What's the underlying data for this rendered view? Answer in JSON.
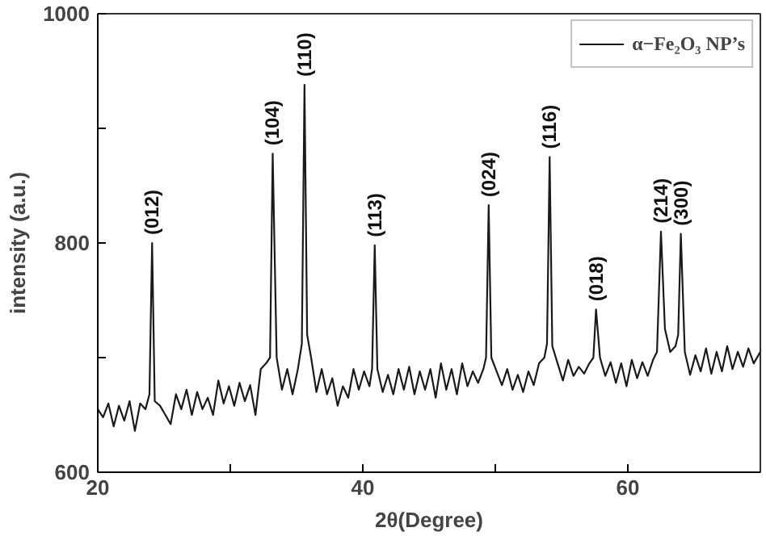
{
  "chart_data": {
    "type": "line",
    "xlabel": "2θ(Degree)",
    "ylabel": "intensity (a.u.)",
    "xlim": [
      20,
      70
    ],
    "ylim": [
      600,
      1000
    ],
    "xticks": [
      20,
      {
        "value": 30,
        "label": null
      },
      40,
      {
        "value": 50,
        "label": null
      },
      60
    ],
    "yticks": [
      600,
      {
        "value": 700,
        "label": null
      },
      800,
      {
        "value": 900,
        "label": null
      },
      1000
    ],
    "grid": false,
    "legend": "top right",
    "marker": "none",
    "line_style": "solid",
    "annotations": [
      {
        "text": "(012)",
        "x": 24.1,
        "y": 800
      },
      {
        "text": "(104)",
        "x": 33.2,
        "y": 878
      },
      {
        "text": "(110)",
        "x": 35.6,
        "y": 938
      },
      {
        "text": "(113)",
        "x": 40.9,
        "y": 798
      },
      {
        "text": "(024)",
        "x": 49.5,
        "y": 833
      },
      {
        "text": "(116)",
        "x": 54.1,
        "y": 875
      },
      {
        "text": "(018)",
        "x": 57.6,
        "y": 742
      },
      {
        "text": "(214)",
        "x": 62.5,
        "y": 810
      },
      {
        "text": "(300)",
        "x": 64.0,
        "y": 808
      }
    ],
    "series": [
      {
        "name": "α−Fe₂O₃ NP’s",
        "color": "#1a1a1a",
        "x": [
          20,
          20.4,
          20.8,
          21.2,
          21.6,
          22,
          22.4,
          22.8,
          23.2,
          23.6,
          23.9,
          24.1,
          24.3,
          24.7,
          25.1,
          25.5,
          25.9,
          26.3,
          26.7,
          27.1,
          27.5,
          27.9,
          28.3,
          28.7,
          29.1,
          29.5,
          29.9,
          30.3,
          30.7,
          31.1,
          31.5,
          31.9,
          32.3,
          32.7,
          33.0,
          33.2,
          33.5,
          33.9,
          34.3,
          34.7,
          35.1,
          35.4,
          35.6,
          35.8,
          36.1,
          36.5,
          36.9,
          37.3,
          37.7,
          38.1,
          38.5,
          38.9,
          39.3,
          39.7,
          40.1,
          40.5,
          40.7,
          40.9,
          41.1,
          41.5,
          41.9,
          42.3,
          42.7,
          43.1,
          43.5,
          43.9,
          44.3,
          44.7,
          45.1,
          45.5,
          45.9,
          46.3,
          46.7,
          47.1,
          47.5,
          47.9,
          48.3,
          48.7,
          49.1,
          49.3,
          49.5,
          49.7,
          50.1,
          50.5,
          50.9,
          51.3,
          51.7,
          52.1,
          52.5,
          52.9,
          53.3,
          53.7,
          53.9,
          54.1,
          54.3,
          54.7,
          55.1,
          55.5,
          55.9,
          56.3,
          56.7,
          57.1,
          57.4,
          57.6,
          57.9,
          58.3,
          58.7,
          59.1,
          59.5,
          59.9,
          60.3,
          60.7,
          61.1,
          61.5,
          61.9,
          62.2,
          62.5,
          62.8,
          63.2,
          63.6,
          63.8,
          64.0,
          64.3,
          64.7,
          65.1,
          65.5,
          65.9,
          66.3,
          66.7,
          67.1,
          67.5,
          67.9,
          68.3,
          68.7,
          69.1,
          69.5,
          70
        ],
        "values": [
          655,
          648,
          660,
          640,
          658,
          645,
          662,
          636,
          660,
          655,
          668,
          800,
          662,
          658,
          650,
          642,
          668,
          655,
          672,
          650,
          670,
          655,
          665,
          650,
          680,
          660,
          675,
          658,
          678,
          662,
          676,
          650,
          690,
          695,
          700,
          878,
          700,
          672,
          690,
          668,
          690,
          712,
          938,
          720,
          700,
          670,
          690,
          668,
          682,
          658,
          675,
          665,
          690,
          672,
          688,
          675,
          690,
          798,
          690,
          670,
          685,
          668,
          690,
          672,
          692,
          668,
          688,
          672,
          690,
          665,
          695,
          672,
          690,
          668,
          695,
          675,
          688,
          678,
          690,
          700,
          833,
          700,
          688,
          676,
          690,
          672,
          685,
          670,
          688,
          676,
          695,
          700,
          712,
          875,
          710,
          695,
          680,
          698,
          684,
          692,
          686,
          695,
          700,
          742,
          700,
          684,
          696,
          678,
          695,
          675,
          698,
          682,
          696,
          684,
          698,
          705,
          810,
          725,
          705,
          710,
          720,
          808,
          705,
          685,
          702,
          688,
          708,
          686,
          705,
          688,
          710,
          690,
          705,
          692,
          708,
          695,
          705
        ]
      }
    ]
  }
}
